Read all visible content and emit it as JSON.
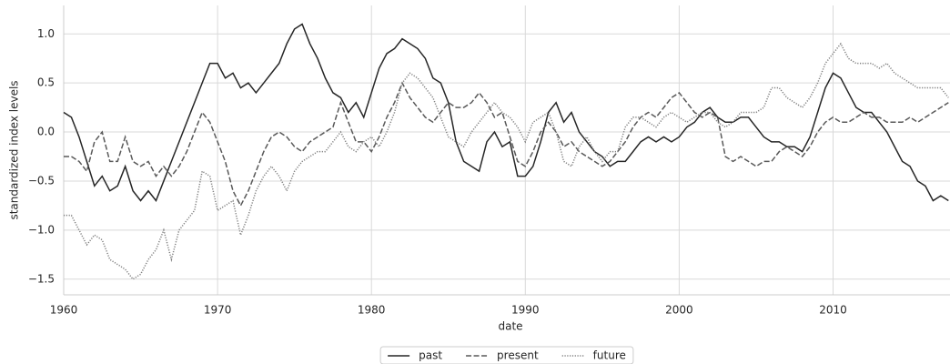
{
  "chart_data": {
    "type": "line",
    "x_label": "date",
    "y_label": "standardized index levels",
    "x": [
      1960,
      1960.5,
      1961,
      1961.5,
      1962,
      1962.5,
      1963,
      1963.5,
      1964,
      1964.5,
      1965,
      1965.5,
      1966,
      1966.5,
      1967,
      1967.5,
      1968,
      1968.5,
      1969,
      1969.5,
      1970,
      1970.5,
      1971,
      1971.5,
      1972,
      1972.5,
      1973,
      1973.5,
      1974,
      1974.5,
      1975,
      1975.5,
      1976,
      1976.5,
      1977,
      1977.5,
      1978,
      1978.5,
      1979,
      1979.5,
      1980,
      1980.5,
      1981,
      1981.5,
      1982,
      1982.5,
      1983,
      1983.5,
      1984,
      1984.5,
      1985,
      1985.5,
      1986,
      1986.5,
      1987,
      1987.5,
      1988,
      1988.5,
      1989,
      1989.5,
      1990,
      1990.5,
      1991,
      1991.5,
      1992,
      1992.5,
      1993,
      1993.5,
      1994,
      1994.5,
      1995,
      1995.5,
      1996,
      1996.5,
      1997,
      1997.5,
      1998,
      1998.5,
      1999,
      1999.5,
      2000,
      2000.5,
      2001,
      2001.5,
      2002,
      2002.5,
      2003,
      2003.5,
      2004,
      2004.5,
      2005,
      2005.5,
      2006,
      2006.5,
      2007,
      2007.5,
      2008,
      2008.5,
      2009,
      2009.5,
      2010,
      2010.5,
      2011,
      2011.5,
      2012,
      2012.5,
      2013,
      2013.5,
      2014,
      2014.5,
      2015,
      2015.5,
      2016,
      2016.5,
      2017,
      2017.5
    ],
    "series": [
      {
        "name": "past",
        "color": "#262626",
        "style": "solid",
        "values": [
          0.2,
          0.15,
          -0.05,
          -0.3,
          -0.55,
          -0.45,
          -0.6,
          -0.55,
          -0.35,
          -0.6,
          -0.7,
          -0.6,
          -0.7,
          -0.5,
          -0.3,
          -0.1,
          0.1,
          0.3,
          0.5,
          0.7,
          0.7,
          0.55,
          0.6,
          0.45,
          0.5,
          0.4,
          0.5,
          0.6,
          0.7,
          0.9,
          1.05,
          1.1,
          0.9,
          0.75,
          0.55,
          0.4,
          0.35,
          0.2,
          0.3,
          0.15,
          0.4,
          0.65,
          0.8,
          0.85,
          0.95,
          0.9,
          0.85,
          0.75,
          0.55,
          0.5,
          0.3,
          -0.1,
          -0.3,
          -0.35,
          -0.4,
          -0.1,
          0.0,
          -0.15,
          -0.1,
          -0.45,
          -0.45,
          -0.35,
          -0.1,
          0.2,
          0.3,
          0.1,
          0.2,
          0.0,
          -0.1,
          -0.2,
          -0.25,
          -0.35,
          -0.3,
          -0.3,
          -0.2,
          -0.1,
          -0.05,
          -0.1,
          -0.05,
          -0.1,
          -0.05,
          0.05,
          0.1,
          0.2,
          0.25,
          0.15,
          0.1,
          0.1,
          0.15,
          0.15,
          0.05,
          -0.05,
          -0.1,
          -0.1,
          -0.15,
          -0.15,
          -0.2,
          -0.05,
          0.2,
          0.45,
          0.6,
          0.55,
          0.4,
          0.25,
          0.2,
          0.2,
          0.1,
          0.0,
          -0.15,
          -0.3,
          -0.35,
          -0.5,
          -0.55,
          -0.7,
          -0.65,
          -0.7
        ]
      },
      {
        "name": "present",
        "color": "#595959",
        "style": "dashed",
        "values": [
          -0.25,
          -0.25,
          -0.3,
          -0.4,
          -0.1,
          0.0,
          -0.3,
          -0.3,
          -0.05,
          -0.3,
          -0.35,
          -0.3,
          -0.45,
          -0.35,
          -0.45,
          -0.35,
          -0.2,
          0.0,
          0.2,
          0.1,
          -0.1,
          -0.3,
          -0.6,
          -0.75,
          -0.6,
          -0.4,
          -0.2,
          -0.05,
          0.0,
          -0.05,
          -0.15,
          -0.2,
          -0.1,
          -0.05,
          0.0,
          0.05,
          0.3,
          0.1,
          -0.1,
          -0.1,
          -0.2,
          -0.05,
          0.15,
          0.3,
          0.5,
          0.35,
          0.25,
          0.15,
          0.1,
          0.2,
          0.3,
          0.25,
          0.25,
          0.3,
          0.4,
          0.3,
          0.15,
          0.2,
          -0.05,
          -0.3,
          -0.35,
          -0.2,
          0.0,
          0.1,
          0.0,
          -0.15,
          -0.1,
          -0.2,
          -0.25,
          -0.3,
          -0.35,
          -0.3,
          -0.2,
          -0.1,
          0.05,
          0.15,
          0.2,
          0.15,
          0.25,
          0.35,
          0.4,
          0.3,
          0.2,
          0.15,
          0.2,
          0.15,
          -0.25,
          -0.3,
          -0.25,
          -0.3,
          -0.35,
          -0.3,
          -0.3,
          -0.2,
          -0.15,
          -0.2,
          -0.25,
          -0.15,
          0.0,
          0.1,
          0.15,
          0.1,
          0.1,
          0.15,
          0.2,
          0.15,
          0.15,
          0.1,
          0.1,
          0.1,
          0.15,
          0.1,
          0.15,
          0.2,
          0.25,
          0.3
        ]
      },
      {
        "name": "future",
        "color": "#7f7f7f",
        "style": "dotted",
        "values": [
          -0.85,
          -0.85,
          -1.0,
          -1.15,
          -1.05,
          -1.1,
          -1.3,
          -1.35,
          -1.4,
          -1.5,
          -1.45,
          -1.3,
          -1.2,
          -1.0,
          -1.3,
          -1.0,
          -0.9,
          -0.8,
          -0.4,
          -0.45,
          -0.8,
          -0.75,
          -0.7,
          -1.05,
          -0.85,
          -0.6,
          -0.45,
          -0.35,
          -0.45,
          -0.6,
          -0.4,
          -0.3,
          -0.25,
          -0.2,
          -0.2,
          -0.1,
          0.0,
          -0.15,
          -0.2,
          -0.1,
          -0.05,
          -0.15,
          0.0,
          0.2,
          0.5,
          0.6,
          0.55,
          0.45,
          0.35,
          0.15,
          -0.05,
          -0.1,
          -0.15,
          0.0,
          0.1,
          0.2,
          0.3,
          0.2,
          0.15,
          0.05,
          -0.1,
          0.1,
          0.15,
          0.2,
          0.0,
          -0.3,
          -0.35,
          -0.15,
          -0.05,
          -0.2,
          -0.3,
          -0.2,
          -0.2,
          0.05,
          0.15,
          0.15,
          0.1,
          0.05,
          0.15,
          0.2,
          0.15,
          0.1,
          0.15,
          0.2,
          0.2,
          0.1,
          0.05,
          0.1,
          0.2,
          0.2,
          0.2,
          0.25,
          0.45,
          0.45,
          0.35,
          0.3,
          0.25,
          0.35,
          0.5,
          0.7,
          0.8,
          0.9,
          0.75,
          0.7,
          0.7,
          0.7,
          0.65,
          0.7,
          0.6,
          0.55,
          0.5,
          0.45,
          0.45,
          0.45,
          0.45,
          0.35
        ]
      }
    ],
    "xlim": [
      1960,
      2017.6
    ],
    "xticks": [
      1960,
      1970,
      1980,
      1990,
      2000,
      2010
    ],
    "ylim": [
      -1.66,
      1.29
    ],
    "yticks": [
      {
        "value": -1.5,
        "label": "−1.5"
      },
      {
        "value": -1,
        "label": "−1.0"
      },
      {
        "value": -0.5,
        "label": "−0.5"
      },
      {
        "value": 0,
        "label": "0.0"
      },
      {
        "value": 0.5,
        "label": "0.5"
      },
      {
        "value": 1,
        "label": "1.0"
      }
    ],
    "grid": true,
    "legend": "bottom"
  }
}
